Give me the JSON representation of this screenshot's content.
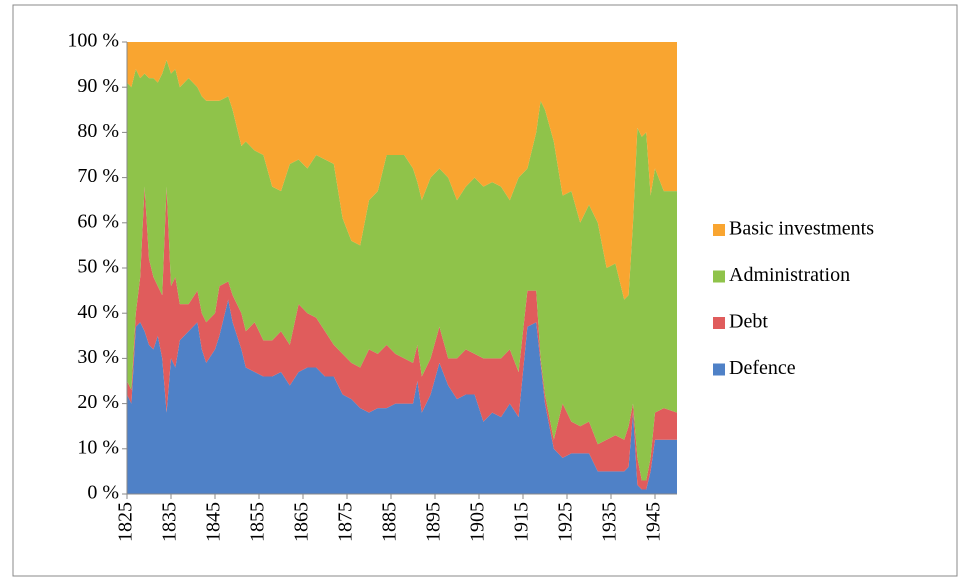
{
  "chart_data": {
    "type": "stacked_area_100",
    "x": [
      1825,
      1826,
      1827,
      1828,
      1829,
      1830,
      1831,
      1832,
      1833,
      1834,
      1835,
      1836,
      1837,
      1839,
      1841,
      1842,
      1843,
      1845,
      1846,
      1848,
      1849,
      1851,
      1852,
      1854,
      1856,
      1858,
      1860,
      1862,
      1864,
      1866,
      1868,
      1870,
      1872,
      1874,
      1876,
      1878,
      1880,
      1882,
      1884,
      1886,
      1888,
      1890,
      1891,
      1892,
      1894,
      1896,
      1898,
      1900,
      1902,
      1904,
      1906,
      1908,
      1910,
      1912,
      1914,
      1916,
      1918,
      1919,
      1920,
      1922,
      1924,
      1926,
      1928,
      1930,
      1932,
      1934,
      1936,
      1938,
      1939,
      1940,
      1941,
      1942,
      1943,
      1944,
      1945,
      1947,
      1950
    ],
    "series": [
      {
        "name": "Defence",
        "color": "#4f81c7",
        "values": [
          22,
          20,
          37,
          38,
          36,
          33,
          32,
          35,
          30,
          18,
          30,
          28,
          34,
          36,
          38,
          32,
          29,
          32,
          35,
          43,
          38,
          32,
          28,
          27,
          26,
          26,
          27,
          24,
          27,
          28,
          28,
          26,
          26,
          22,
          21,
          19,
          18,
          19,
          19,
          20,
          20,
          20,
          25,
          18,
          22,
          29,
          24,
          21,
          22,
          22,
          16,
          18,
          17,
          20,
          17,
          37,
          38,
          29,
          20,
          10,
          8,
          9,
          9,
          9,
          5,
          5,
          5,
          5,
          6,
          18,
          2,
          1,
          1,
          5,
          12,
          12,
          12
        ]
      },
      {
        "name": "Debt",
        "color": "#e05c5c",
        "values": [
          3,
          3,
          3,
          10,
          32,
          19,
          16,
          11,
          14,
          50,
          16,
          20,
          8,
          6,
          7,
          8,
          9,
          8,
          11,
          4,
          6,
          8,
          8,
          11,
          8,
          8,
          9,
          9,
          15,
          12,
          11,
          10,
          7,
          9,
          8,
          9,
          14,
          12,
          14,
          11,
          10,
          9,
          8,
          8,
          8,
          8,
          6,
          9,
          10,
          9,
          14,
          12,
          13,
          12,
          10,
          8,
          7,
          1,
          2,
          2,
          12,
          7,
          6,
          7,
          6,
          7,
          8,
          7,
          9,
          2,
          6,
          2,
          2,
          3,
          6,
          7,
          6
        ]
      },
      {
        "name": "Administration",
        "color": "#8fc34a",
        "values": [
          66,
          67,
          54,
          44,
          25,
          40,
          44,
          45,
          49,
          28,
          47,
          46,
          48,
          50,
          45,
          48,
          49,
          47,
          41,
          41,
          41,
          37,
          42,
          38,
          41,
          34,
          31,
          40,
          32,
          32,
          36,
          38,
          40,
          30,
          27,
          27,
          33,
          36,
          42,
          44,
          45,
          43,
          36,
          39,
          40,
          35,
          40,
          35,
          36,
          39,
          38,
          39,
          38,
          33,
          43,
          27,
          35,
          57,
          63,
          66,
          46,
          51,
          45,
          48,
          49,
          38,
          38,
          31,
          29,
          40,
          73,
          76,
          77,
          58,
          54,
          48,
          49
        ]
      },
      {
        "name": "Basic investments",
        "color": "#f9a530",
        "values": [
          9,
          10,
          6,
          8,
          7,
          8,
          8,
          9,
          7,
          4,
          7,
          6,
          10,
          8,
          10,
          12,
          13,
          13,
          13,
          12,
          15,
          23,
          22,
          24,
          25,
          32,
          33,
          27,
          26,
          28,
          25,
          26,
          27,
          39,
          44,
          45,
          35,
          33,
          25,
          25,
          25,
          28,
          31,
          35,
          30,
          28,
          30,
          35,
          32,
          30,
          32,
          31,
          32,
          35,
          30,
          28,
          20,
          13,
          15,
          22,
          34,
          33,
          40,
          36,
          40,
          50,
          49,
          57,
          56,
          40,
          19,
          21,
          20,
          34,
          28,
          33,
          33
        ]
      }
    ],
    "xlim": [
      1825,
      1950
    ],
    "xticks": [
      1825,
      1835,
      1845,
      1855,
      1865,
      1875,
      1885,
      1895,
      1905,
      1915,
      1925,
      1935,
      1945
    ],
    "ylim": [
      0,
      100
    ],
    "yticks": [
      {
        "value": 0,
        "label": "0 %"
      },
      {
        "value": 10,
        "label": "10 %"
      },
      {
        "value": 20,
        "label": "20 %"
      },
      {
        "value": 30,
        "label": "30 %"
      },
      {
        "value": 40,
        "label": "40 %"
      },
      {
        "value": 50,
        "label": "50 %"
      },
      {
        "value": 60,
        "label": "60 %"
      },
      {
        "value": 70,
        "label": "70 %"
      },
      {
        "value": 80,
        "label": "80 %"
      },
      {
        "value": 90,
        "label": "90 %"
      },
      {
        "value": 100,
        "label": "100 %"
      }
    ],
    "legend": "right"
  }
}
